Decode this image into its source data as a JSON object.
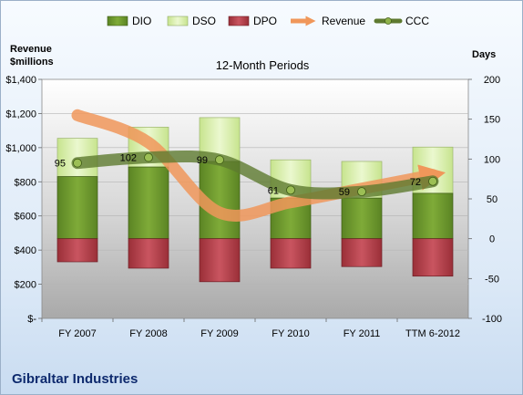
{
  "chart_data": {
    "type": "bar",
    "title": "12-Month Periods",
    "company": "Gibraltar Industries",
    "y_left_label_line1": "Revenue",
    "y_left_label_line2": "$millions",
    "y_right_label": "Days",
    "categories": [
      "FY 2007",
      "FY 2008",
      "FY 2009",
      "FY 2010",
      "FY 2011",
      "TTM 6-2012"
    ],
    "y_left_ticks": [
      "$-",
      "$200",
      "$400",
      "$600",
      "$800",
      "$1,000",
      "$1,200",
      "$1,400"
    ],
    "y_right_ticks": [
      "-100",
      "-50",
      "0",
      "50",
      "100",
      "150",
      "200"
    ],
    "ylim_left": [
      0,
      1400
    ],
    "ylim_right": [
      -100,
      200
    ],
    "legend_position": "top",
    "series": [
      {
        "name": "DIO",
        "kind": "stacked-bar",
        "color": "#6f9a2e",
        "values": [
          78,
          90,
          97,
          51,
          51,
          57
        ]
      },
      {
        "name": "DSO",
        "kind": "stacked-bar",
        "color": "#d8efae",
        "values": [
          48,
          50,
          55,
          48,
          46,
          58
        ]
      },
      {
        "name": "DPO",
        "kind": "negative-bar",
        "color": "#b8404a",
        "values": [
          -29,
          -37,
          -54,
          -37,
          -35,
          -47
        ]
      },
      {
        "name": "Revenue",
        "kind": "line",
        "axis": "left",
        "color": "#f0975a",
        "values": [
          1190,
          1030,
          620,
          680,
          760,
          840
        ]
      },
      {
        "name": "CCC",
        "kind": "line",
        "axis": "right",
        "color": "#5e7a30",
        "values": [
          95,
          102,
          99,
          61,
          59,
          72
        ]
      }
    ],
    "ccc_labels": [
      "95",
      "102",
      "99",
      "61",
      "59",
      "72"
    ]
  }
}
